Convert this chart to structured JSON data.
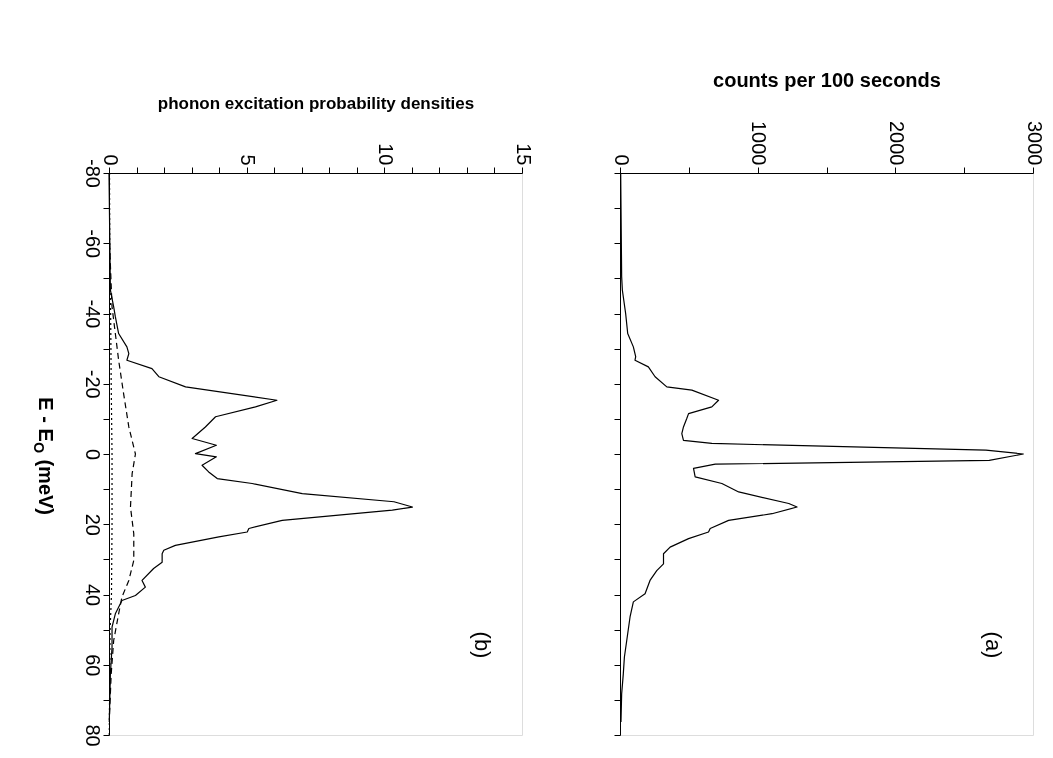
{
  "chart_data": [
    {
      "type": "line",
      "xlabel": "phonon excitation probability densities",
      "ylabel": "E - E$_{O}$ (meV)",
      "annotations": [
        "(b)"
      ],
      "ylim": [
        80,
        -80
      ],
      "yticks": [
        -80,
        {
          "value": -70,
          "label": null
        },
        -60,
        {
          "value": -50,
          "label": null
        },
        -40,
        {
          "value": -30,
          "label": null
        },
        -20,
        {
          "value": -10,
          "label": null
        },
        0,
        {
          "value": 10,
          "label": null
        },
        20,
        {
          "value": 30,
          "label": null
        },
        40,
        {
          "value": 50,
          "label": null
        },
        60,
        {
          "value": 70,
          "label": null
        },
        80
      ],
      "xlim": [
        0,
        15
      ],
      "xticks": [
        0,
        {
          "value": 1,
          "label": null
        },
        {
          "value": 2,
          "label": null
        },
        {
          "value": 3,
          "label": null
        },
        {
          "value": 4,
          "label": null
        },
        5,
        {
          "value": 6,
          "label": null
        },
        {
          "value": 7,
          "label": null
        },
        {
          "value": 8,
          "label": null
        },
        {
          "value": 9,
          "label": null
        },
        10,
        {
          "value": 11,
          "label": null
        },
        {
          "value": 12,
          "label": null
        },
        {
          "value": 13,
          "label": null
        },
        {
          "value": 14,
          "label": null
        },
        15
      ],
      "series": [
        {
          "color": "#000000",
          "line_style": "solid",
          "values": [
            -80,
            -46.7,
            -41.9,
            -39.1,
            -34.3,
            -30.5,
            -28.6,
            -26.7,
            -24.3,
            -22,
            -19.1,
            -15.3,
            -13.4,
            -10.6,
            -7.7,
            -4.4,
            -2.5,
            -0.1,
            0.8,
            3.2,
            5.1,
            7,
            8.4,
            11.3,
            13.6,
            15.1,
            16,
            18.9,
            21.2,
            22.2,
            23.6,
            26,
            27.4,
            28.4,
            30.8,
            32.6,
            36,
            37.9,
            40.3,
            41.7,
            45.5,
            49.3,
            55,
            62.6,
            76.3
          ],
          "x": [
            0.0,
            0.05,
            0.17,
            0.23,
            0.35,
            0.65,
            0.72,
            0.65,
            1.56,
            1.81,
            2.78,
            6.1,
            5.32,
            3.87,
            3.5,
            3.02,
            3.9,
            3.14,
            3.9,
            3.38,
            3.62,
            3.93,
            5.2,
            7.02,
            10.35,
            11.02,
            10.29,
            6.29,
            5.08,
            5.02,
            3.99,
            2.41,
            1.99,
            1.93,
            1.93,
            1.62,
            1.2,
            1.32,
            0.96,
            0.47,
            0.23,
            0.11,
            0.11,
            0.05,
            0.01
          ]
        },
        {
          "color": "#000000",
          "line_style": "dashed",
          "values": [
            -60,
            -41.9,
            -34.3,
            -26.7,
            -17.2,
            -7.7,
            0,
            5.6,
            15.1,
            22.7,
            30.3,
            36,
            40.7,
            45.5,
            53.1,
            62.6,
            74
          ],
          "x": [
            0.02,
            0.11,
            0.23,
            0.35,
            0.53,
            0.72,
            0.96,
            0.84,
            0.78,
            0.9,
            0.9,
            0.72,
            0.47,
            0.35,
            0.17,
            0.08,
            0.02
          ]
        },
        {
          "color": "#000000",
          "line_style": "dotted",
          "values": [
            -80,
            -50,
            -40,
            -20,
            0,
            20,
            40,
            50,
            80
          ],
          "x": [
            0.02,
            0.03,
            0.06,
            0.08,
            0.11,
            0.11,
            0.09,
            0.04,
            0.01
          ]
        }
      ]
    },
    {
      "type": "line",
      "xlabel": "counts per 100 seconds",
      "annotations": [
        "(a)"
      ],
      "tick_labels": "x",
      "ylim": [
        80,
        -80
      ],
      "yticks": [
        -80,
        {
          "value": -70,
          "label": null
        },
        -60,
        {
          "value": -50,
          "label": null
        },
        -40,
        {
          "value": -30,
          "label": null
        },
        -20,
        {
          "value": -10,
          "label": null
        },
        0,
        {
          "value": 10,
          "label": null
        },
        20,
        {
          "value": 30,
          "label": null
        },
        40,
        {
          "value": 50,
          "label": null
        },
        60,
        {
          "value": 70,
          "label": null
        },
        80
      ],
      "xlim": [
        0,
        3000
      ],
      "xticks": [
        0,
        {
          "value": 500,
          "label": null
        },
        1000,
        {
          "value": 1500,
          "label": null
        },
        2000,
        {
          "value": 2500,
          "label": null
        },
        3000
      ],
      "series": [
        {
          "color": "#000000",
          "line_style": "solid",
          "values": [
            -80,
            -50.5,
            -46.7,
            -40,
            -34.3,
            -30.5,
            -27.7,
            -26.7,
            -24.8,
            -22,
            -19.1,
            -18.2,
            -15.3,
            -13.4,
            -11.5,
            -10.1,
            -7.7,
            -5.8,
            -3.9,
            -3,
            -1.1,
            0,
            1.8,
            2.9,
            4.1,
            6.5,
            8.4,
            10.8,
            14.1,
            15.1,
            17,
            18.9,
            21.2,
            22.2,
            24.1,
            26.5,
            28.4,
            31.3,
            33.2,
            36,
            39.8,
            42.1,
            46.4,
            53.1,
            57.8,
            62.6,
            68.3,
            76.3
          ],
          "x": [
            5,
            12,
            17,
            41,
            56,
            97,
            114,
            109,
            206,
            255,
            340,
            522,
            716,
            667,
            498,
            485,
            461,
            449,
            461,
            667,
            2658,
            2930,
            2682,
            692,
            534,
            546,
            740,
            862,
            1226,
            1286,
            1104,
            789,
            655,
            643,
            498,
            364,
            316,
            316,
            267,
            218,
            182,
            97,
            73,
            49,
            32,
            24,
            12,
            7
          ]
        }
      ]
    }
  ]
}
